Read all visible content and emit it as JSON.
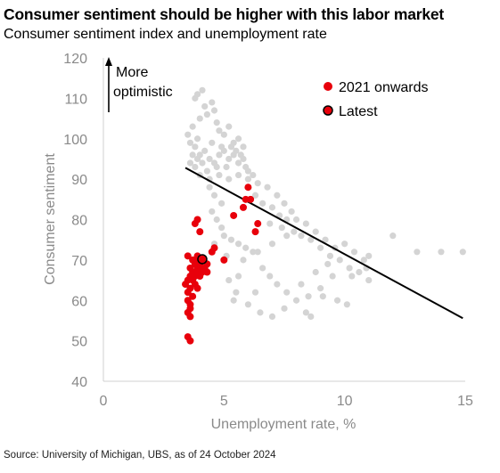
{
  "title": "Consumer sentiment should be higher with this labor market",
  "subtitle": "Consumer sentiment index and unemployment rate",
  "source": "Source: University of Michigan, UBS, as of 24 October 2024",
  "chart_data": {
    "type": "scatter",
    "xlabel": "Unemployment rate, %",
    "ylabel": "Consumer sentiment",
    "xlim": [
      0,
      15
    ],
    "ylim": [
      40,
      120
    ],
    "xticks": [
      0,
      5,
      10,
      15
    ],
    "yticks": [
      40,
      50,
      60,
      70,
      80,
      90,
      100,
      110,
      120
    ],
    "annotation": {
      "line1": "More",
      "line2": "optimistic"
    },
    "legend": [
      {
        "label": "2021 onwards",
        "color": "#e8000b"
      },
      {
        "label": "Latest",
        "color": "#e8000b"
      }
    ],
    "colors": {
      "history": "#d4d4d4",
      "recent": "#e8000b",
      "trend": "#000000"
    },
    "trend_line": {
      "x": [
        3.4,
        14.9
      ],
      "y": [
        92.8,
        55.6
      ]
    },
    "latest": {
      "x": 4.1,
      "y": 70.2
    },
    "series": [
      {
        "role": "history",
        "points": [
          [
            3.5,
            101
          ],
          [
            3.6,
            99
          ],
          [
            3.7,
            103
          ],
          [
            3.8,
            98
          ],
          [
            3.9,
            100
          ],
          [
            4.0,
            105
          ],
          [
            3.8,
            110
          ],
          [
            3.9,
            111
          ],
          [
            4.1,
            112
          ],
          [
            4.2,
            108
          ],
          [
            4.3,
            106
          ],
          [
            4.5,
            109
          ],
          [
            4.6,
            107
          ],
          [
            4.7,
            104
          ],
          [
            4.8,
            102
          ],
          [
            5.0,
            101
          ],
          [
            5.2,
            103
          ],
          [
            5.4,
            99
          ],
          [
            5.6,
            100
          ],
          [
            5.8,
            98
          ],
          [
            4.0,
            96
          ],
          [
            4.2,
            97
          ],
          [
            4.4,
            95
          ],
          [
            4.6,
            94
          ],
          [
            4.8,
            96
          ],
          [
            5.0,
            97
          ],
          [
            5.2,
            95
          ],
          [
            5.4,
            96
          ],
          [
            5.6,
            94
          ],
          [
            5.8,
            95
          ],
          [
            6.0,
            92
          ],
          [
            6.2,
            91
          ],
          [
            4.5,
            99
          ],
          [
            4.9,
            98
          ],
          [
            5.3,
            98
          ],
          [
            5.5,
            97
          ],
          [
            5.7,
            96
          ],
          [
            5.9,
            93
          ],
          [
            5.1,
            93
          ],
          [
            4.7,
            93
          ],
          [
            4.3,
            92
          ],
          [
            4.1,
            94
          ],
          [
            3.9,
            95
          ],
          [
            3.7,
            96
          ],
          [
            3.6,
            94
          ],
          [
            3.8,
            93
          ],
          [
            4.0,
            91
          ],
          [
            4.4,
            90
          ],
          [
            4.8,
            91
          ],
          [
            5.2,
            90
          ],
          [
            5.6,
            91
          ],
          [
            6.0,
            90
          ],
          [
            6.4,
            89
          ],
          [
            6.8,
            88
          ],
          [
            7.2,
            86
          ],
          [
            7.5,
            84
          ],
          [
            7.8,
            82
          ],
          [
            8.0,
            80
          ],
          [
            8.4,
            79
          ],
          [
            8.8,
            77
          ],
          [
            9.2,
            75
          ],
          [
            9.6,
            73
          ],
          [
            10.0,
            74
          ],
          [
            10.4,
            72
          ],
          [
            10.8,
            70
          ],
          [
            11.0,
            71
          ],
          [
            12.0,
            76
          ],
          [
            13.0,
            72
          ],
          [
            14.0,
            72
          ],
          [
            14.9,
            72
          ],
          [
            6.3,
            86
          ],
          [
            6.6,
            84
          ],
          [
            7.0,
            83
          ],
          [
            7.3,
            81
          ],
          [
            7.6,
            80
          ],
          [
            6.9,
            79
          ],
          [
            7.4,
            78
          ],
          [
            7.9,
            77
          ],
          [
            8.2,
            76
          ],
          [
            8.6,
            75
          ],
          [
            9.0,
            73
          ],
          [
            9.4,
            71
          ],
          [
            9.8,
            70
          ],
          [
            10.2,
            68
          ],
          [
            10.6,
            67
          ],
          [
            11.0,
            65
          ],
          [
            9.5,
            66
          ],
          [
            9.0,
            63
          ],
          [
            8.5,
            61
          ],
          [
            8.0,
            60
          ],
          [
            7.5,
            58
          ],
          [
            7.0,
            56
          ],
          [
            6.5,
            57
          ],
          [
            6.0,
            59
          ],
          [
            5.5,
            62
          ],
          [
            5.2,
            65
          ],
          [
            5.8,
            70
          ],
          [
            6.4,
            72
          ],
          [
            7.0,
            74
          ],
          [
            7.6,
            76
          ],
          [
            4.6,
            86
          ],
          [
            4.9,
            84
          ],
          [
            4.4,
            88
          ],
          [
            4.5,
            82
          ],
          [
            4.7,
            80
          ],
          [
            4.9,
            78
          ],
          [
            5.0,
            76
          ],
          [
            5.3,
            75
          ],
          [
            5.6,
            74
          ],
          [
            5.9,
            73
          ],
          [
            6.2,
            72
          ],
          [
            6.6,
            68
          ],
          [
            6.9,
            66
          ],
          [
            7.2,
            64
          ],
          [
            7.6,
            62
          ],
          [
            8.2,
            64
          ],
          [
            8.8,
            67
          ],
          [
            9.3,
            69
          ],
          [
            9.7,
            60
          ],
          [
            10.1,
            59
          ],
          [
            6.3,
            62
          ],
          [
            5.6,
            66
          ],
          [
            5.4,
            60
          ],
          [
            5.1,
            71
          ],
          [
            4.6,
            74
          ],
          [
            8.6,
            56
          ],
          [
            8.4,
            57
          ],
          [
            9.1,
            61
          ],
          [
            10.3,
            66
          ],
          [
            10.9,
            68
          ]
        ]
      },
      {
        "role": "recent",
        "name": "2021 onwards",
        "points": [
          [
            3.4,
            64
          ],
          [
            3.5,
            62
          ],
          [
            3.5,
            60
          ],
          [
            3.6,
            58
          ],
          [
            3.5,
            57
          ],
          [
            3.6,
            59
          ],
          [
            3.7,
            61
          ],
          [
            3.6,
            63
          ],
          [
            3.7,
            65
          ],
          [
            3.8,
            64
          ],
          [
            3.9,
            63
          ],
          [
            3.8,
            66
          ],
          [
            3.7,
            67
          ],
          [
            3.6,
            68
          ],
          [
            3.8,
            69
          ],
          [
            3.9,
            68
          ],
          [
            3.6,
            66
          ],
          [
            3.7,
            70
          ],
          [
            3.8,
            70
          ],
          [
            3.9,
            71
          ],
          [
            4.0,
            69
          ],
          [
            4.1,
            68
          ],
          [
            4.2,
            68
          ],
          [
            4.3,
            67
          ],
          [
            4.1,
            67
          ],
          [
            4.0,
            66
          ],
          [
            4.3,
            69
          ],
          [
            4.5,
            72
          ],
          [
            4.6,
            73
          ],
          [
            5.0,
            70
          ],
          [
            3.5,
            71
          ],
          [
            3.5,
            65
          ],
          [
            3.6,
            56
          ],
          [
            3.5,
            51
          ],
          [
            3.6,
            50
          ],
          [
            3.8,
            79
          ],
          [
            3.9,
            80
          ],
          [
            4.0,
            77
          ],
          [
            5.4,
            81
          ],
          [
            5.8,
            83
          ],
          [
            6.3,
            77
          ],
          [
            6.4,
            79
          ],
          [
            5.9,
            85
          ],
          [
            6.1,
            85
          ],
          [
            6.0,
            88
          ],
          [
            3.9,
            67
          ]
        ]
      }
    ]
  }
}
